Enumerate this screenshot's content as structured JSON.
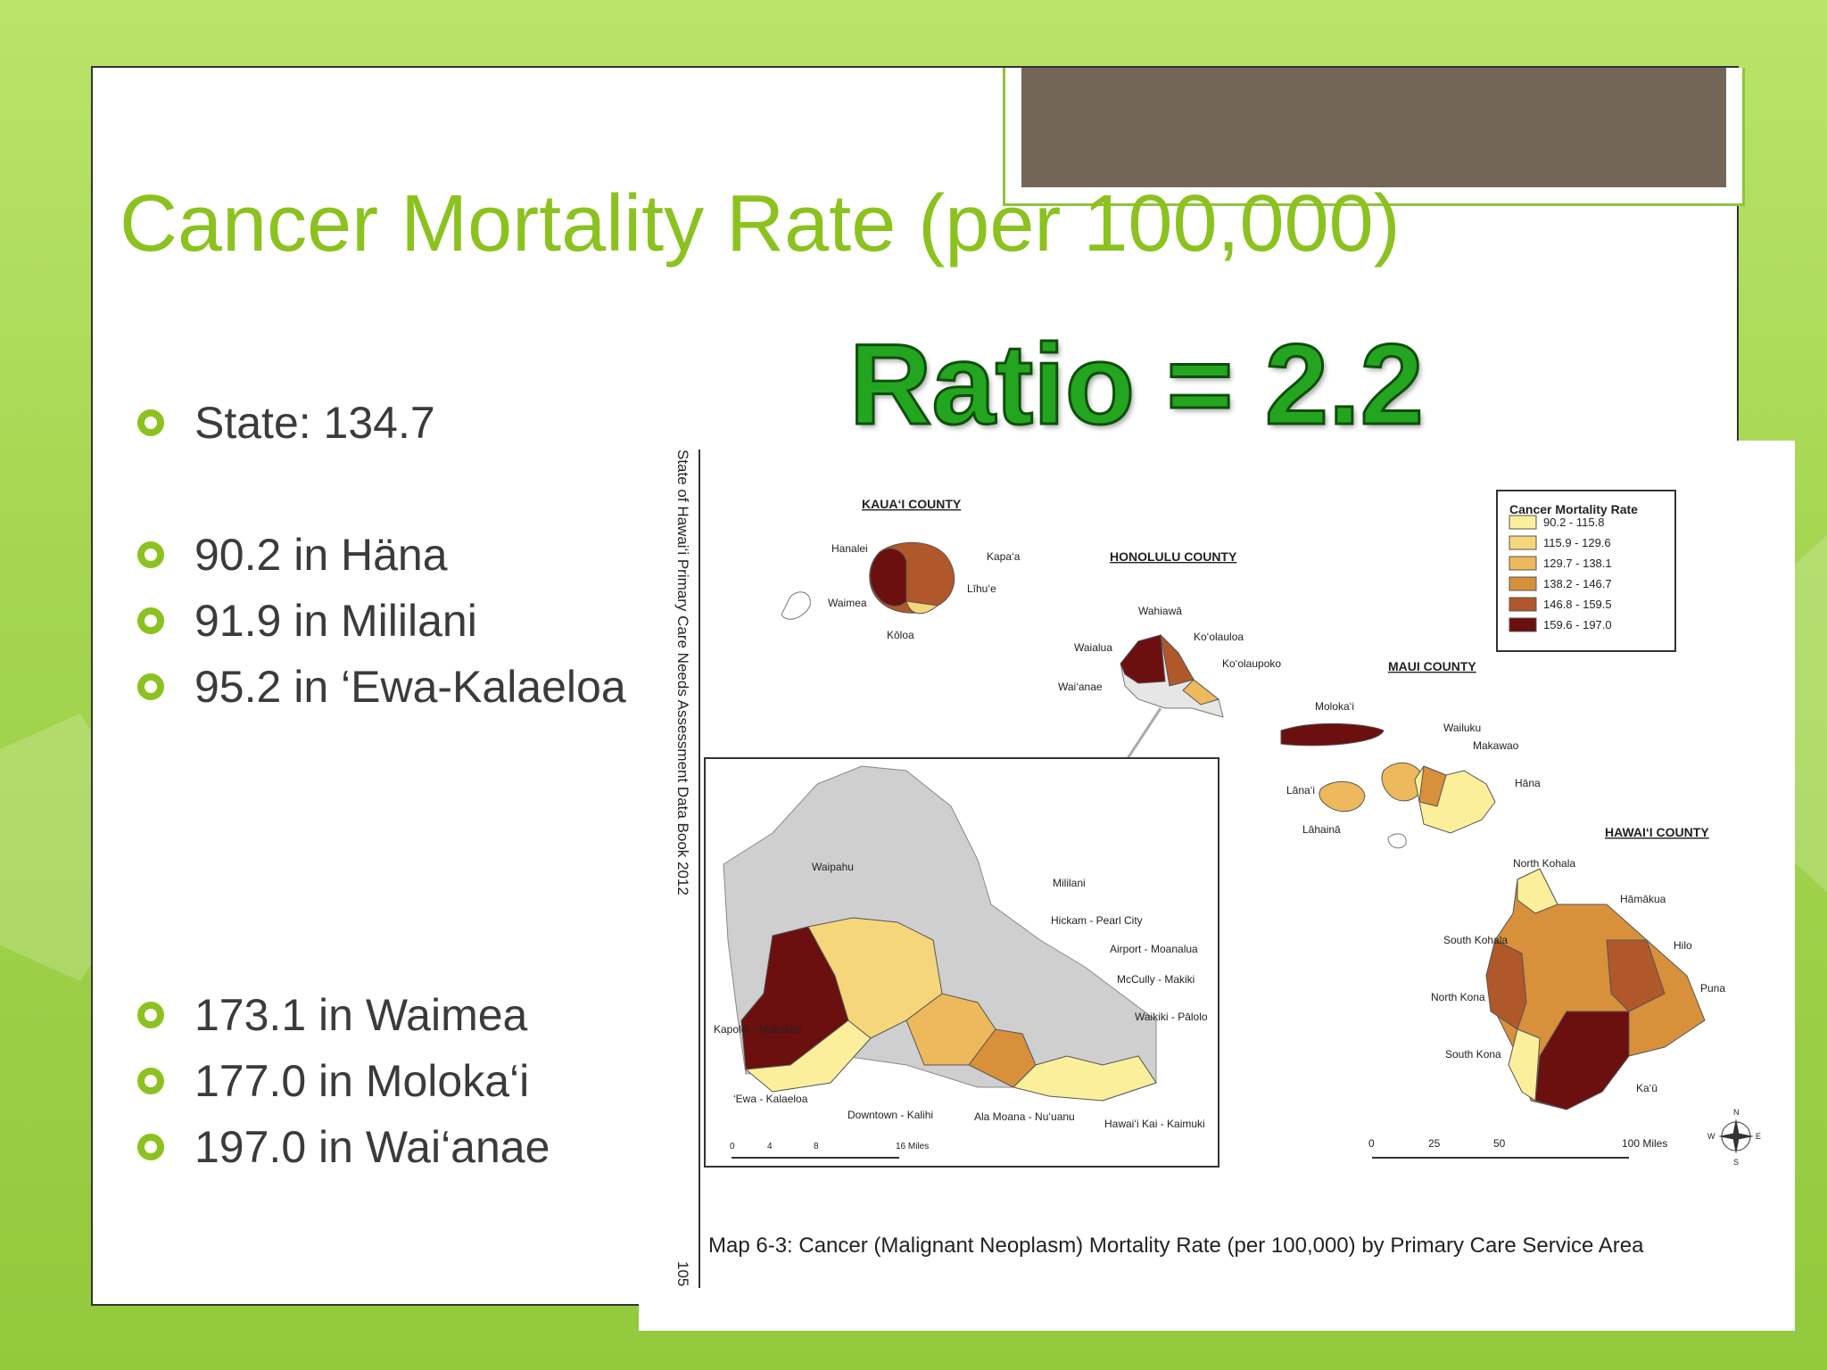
{
  "slide": {
    "title": "Cancer Mortality Rate (per 100,000)",
    "ratio": "Ratio = 2.2",
    "bullets_top": [
      "State: 134.7"
    ],
    "bullets_low": [
      "90.2 in Häna",
      "91.9 in Mililani",
      "95.2 in ‘Ewa-Kalaeloa"
    ],
    "bullets_high": [
      "173.1 in Waimea",
      "177.0 in Moloka‘i",
      "197.0 in Wai‘anae"
    ]
  },
  "map": {
    "side_caption": "State of Hawai‘i Primary Care Needs Assessment Data Book 2012",
    "page_number": "105",
    "caption": "Map 6-3: Cancer (Malignant Neoplasm) Mortality Rate (per 100,000) by Primary Care Service Area",
    "counties": {
      "kauai": "KAUA‘I COUNTY",
      "honolulu": "HONOLULU COUNTY",
      "maui": "MAUI COUNTY",
      "hawaii": "HAWAI‘I COUNTY"
    },
    "legend": {
      "title": "Cancer Mortality Rate",
      "items": [
        {
          "label": "90.2 - 115.8",
          "color": "#fbef9c"
        },
        {
          "label": "115.9 - 129.6",
          "color": "#f6d67b"
        },
        {
          "label": "129.7 - 138.1",
          "color": "#edb95c"
        },
        {
          "label": "138.2 - 146.7",
          "color": "#d8903b"
        },
        {
          "label": "146.8 - 159.5",
          "color": "#b0582a"
        },
        {
          "label": "159.6 - 197.0",
          "color": "#6b0f0f"
        }
      ]
    },
    "place_labels": {
      "hanalei": "Hanalei",
      "kapaa": "Kapa‘a",
      "lihue": "Līhu‘e",
      "waimea": "Waimea",
      "koloa": "Kōloa",
      "wahiawa": "Wahiawā",
      "koolauloa": "Ko‘olauloa",
      "waialua": "Waialua",
      "koolaupoko": "Ko‘olaupoko",
      "waianae": "Wai‘anae",
      "molokai": "Moloka‘i",
      "wailuku": "Wailuku",
      "makawao": "Makawao",
      "lanai": "Lāna‘i",
      "hana": "Hāna",
      "lahaina": "Lāhainā",
      "north_kohala": "North Kohala",
      "hamakua": "Hāmākua",
      "south_kohala": "South Kohala",
      "hilo": "Hilo",
      "puna": "Puna",
      "north_kona": "North Kona",
      "south_kona": "South Kona",
      "kau": "Ka‘ū",
      "waipahu": "Waipahu",
      "mililani": "Mililani",
      "hickam": "Hickam - Pearl City",
      "airport": "Airport - Moanalua",
      "mccully": "McCully - Makiki",
      "waikiki": "Waikiki - Pālolo",
      "kapolei": "Kapolei - Makakilo",
      "ewa": "‘Ewa - Kalaeloa",
      "downtown": "Downtown - Kalihi",
      "alamoana": "Ala Moana - Nu‘uanu",
      "hawaiikai": "Hawai‘i Kai - Kaimuki"
    },
    "scale_inset": {
      "ticks": [
        "0",
        "4",
        "8"
      ],
      "end": "16 Miles"
    },
    "scale_main": {
      "ticks": [
        "0",
        "25",
        "50"
      ],
      "end": "100 Miles"
    },
    "compass": {
      "n": "N",
      "s": "S",
      "e": "E",
      "w": "W"
    }
  }
}
